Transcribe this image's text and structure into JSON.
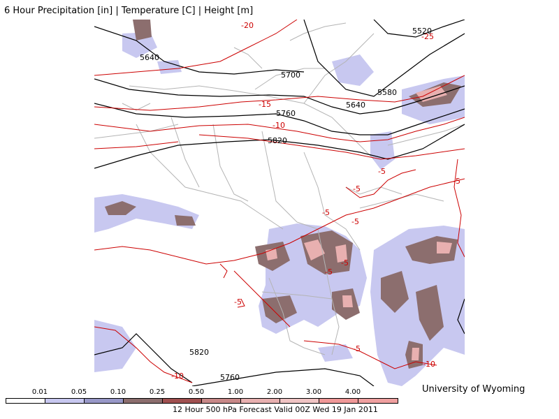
{
  "title": "6 Hour Precipitation [in] | Temperature [C] | Height [m]",
  "credit": "University of Wyoming",
  "footer": "12 Hour 500 hPa Forecast Valid 00Z Wed 19 Jan 2011",
  "colors": {
    "height_contour": "#000000",
    "temperature_contour": "#cc0000",
    "borders": "#b4b4b4"
  },
  "scale": {
    "labels": [
      "0.01",
      "0.05",
      "0.10",
      "0.25",
      "0.50",
      "1.00",
      "2.00",
      "3.00",
      "4.00"
    ],
    "colors": [
      "#ffffff",
      "#c8c8f0",
      "#9898c8",
      "#8c6e6e",
      "#a05050",
      "#c88888",
      "#e8b0b0",
      "#f0c4c4",
      "#f09898",
      "#f0a0a0"
    ]
  },
  "height_labels": [
    "5640",
    "5700",
    "5760",
    "5820",
    "5580",
    "5640",
    "5520",
    "5820",
    "5760"
  ],
  "temp_labels": [
    "-20",
    "-25",
    "-15",
    "-10",
    "-5",
    "-5",
    "-5",
    "-5",
    "-5",
    "-5",
    "-5",
    "-5",
    "-5",
    "-10",
    "-10"
  ]
}
